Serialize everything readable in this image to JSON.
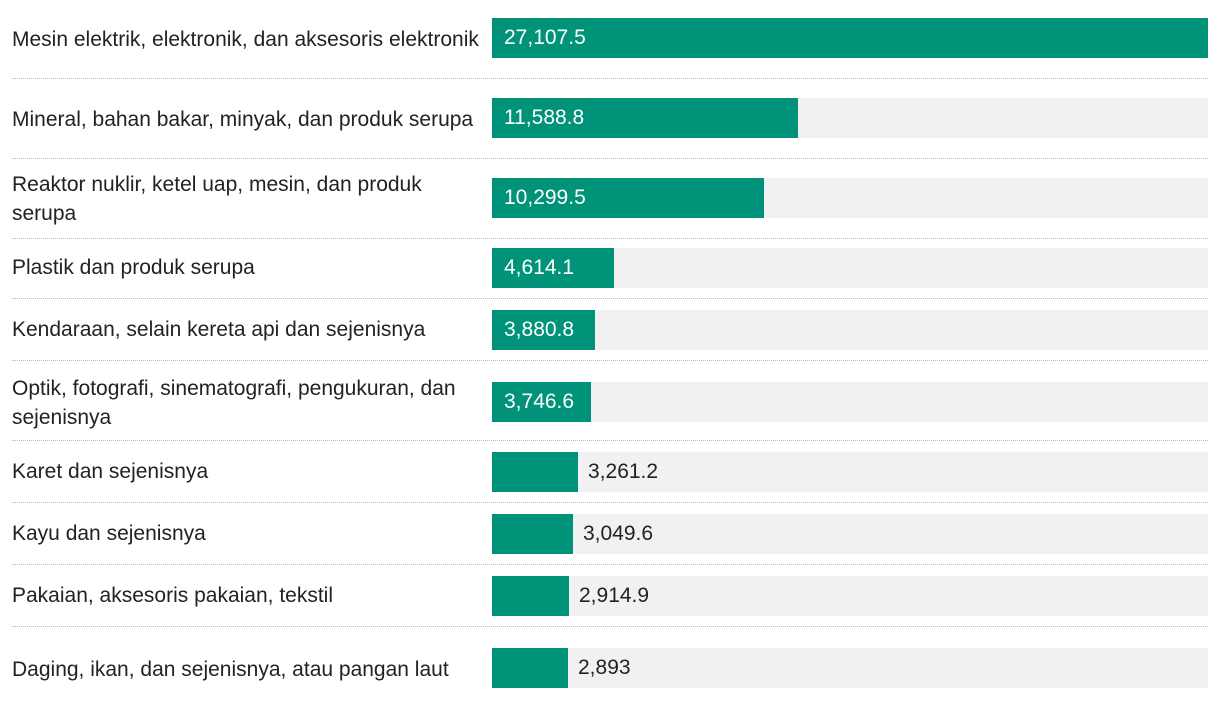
{
  "chart_data": {
    "type": "bar",
    "orientation": "horizontal",
    "categories": [
      "Mesin elektrik, elektronik, dan aksesoris elektronik",
      "Mineral, bahan bakar, minyak, dan produk serupa",
      "Reaktor nuklir, ketel uap, mesin, dan produk serupa",
      "Plastik dan produk serupa",
      "Kendaraan, selain kereta api dan sejenisnya",
      "Optik, fotografi, sinematografi, pengukuran, dan sejenisnya",
      "Karet dan sejenisnya",
      "Kayu dan sejenisnya",
      "Pakaian, aksesoris pakaian, tekstil",
      "Daging, ikan, dan sejenisnya, atau pangan laut"
    ],
    "values": [
      27107.5,
      11588.8,
      10299.5,
      4614.1,
      3880.8,
      3746.6,
      3261.2,
      3049.6,
      2914.9,
      2893
    ],
    "value_labels": [
      "27,107.5",
      "11,588.8",
      "10,299.5",
      "4,614.1",
      "3,880.8",
      "3,746.6",
      "3,261.2",
      "3,049.6",
      "2,914.9",
      "2,893"
    ],
    "xlim": [
      0,
      27107.5
    ],
    "grid": false,
    "legend": "none",
    "title": "",
    "xlabel": "",
    "ylabel": "",
    "colors": {
      "bar": "#009379",
      "track": "#f1f1f1",
      "label_inside": "#ffffff",
      "label_outside": "#222222",
      "divider": "#bdbdbd"
    }
  }
}
